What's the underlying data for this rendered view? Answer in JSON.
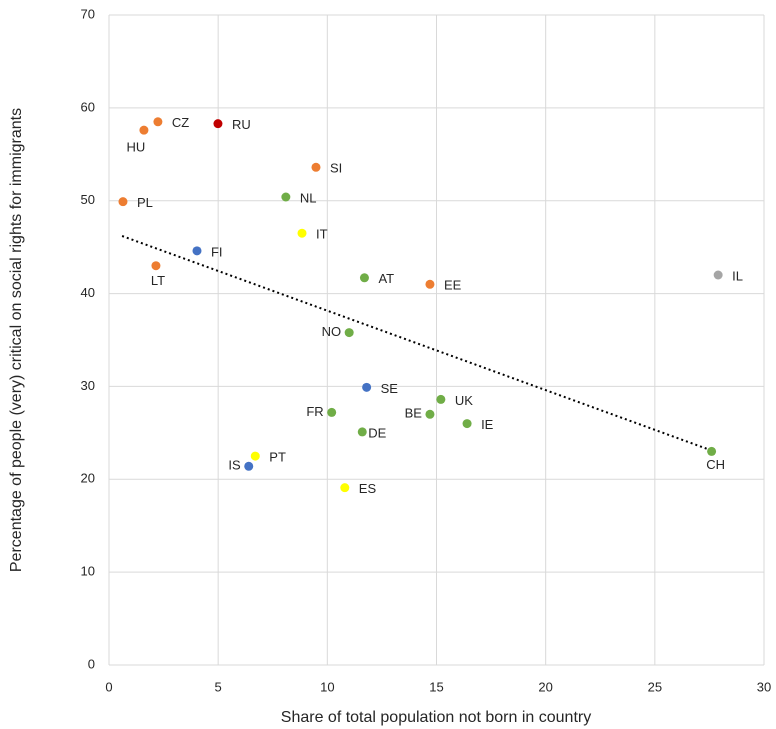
{
  "chart_data": {
    "type": "scatter",
    "xlabel": "Share of total population not born in country",
    "ylabel": "Percentage of people (very) critical on social rights for immigrants",
    "xlim": [
      0,
      30
    ],
    "xticks": [
      0,
      5,
      10,
      15,
      20,
      25,
      30
    ],
    "ylim": [
      0,
      70
    ],
    "yticks": [
      0,
      10,
      20,
      30,
      40,
      50,
      60,
      70
    ],
    "grid": true,
    "points": [
      {
        "label": "PL",
        "x": 0.64,
        "y": 49.9,
        "color": "#ed7d31"
      },
      {
        "label": "HU",
        "x": 1.6,
        "y": 57.6,
        "color": "#ed7d31"
      },
      {
        "label": "CZ",
        "x": 2.24,
        "y": 58.5,
        "color": "#ed7d31"
      },
      {
        "label": "RU",
        "x": 4.99,
        "y": 58.3,
        "color": "#c00000"
      },
      {
        "label": "LT",
        "x": 2.15,
        "y": 43.0,
        "color": "#ed7d31"
      },
      {
        "label": "FI",
        "x": 4.03,
        "y": 44.6,
        "color": "#4472c4"
      },
      {
        "label": "NL",
        "x": 8.1,
        "y": 50.4,
        "color": "#70ad47"
      },
      {
        "label": "SI",
        "x": 9.48,
        "y": 53.6,
        "color": "#ed7d31"
      },
      {
        "label": "IT",
        "x": 8.84,
        "y": 46.5,
        "color": "#ffff00"
      },
      {
        "label": "AT",
        "x": 11.7,
        "y": 41.7,
        "color": "#70ad47"
      },
      {
        "label": "EE",
        "x": 14.7,
        "y": 41.0,
        "color": "#ed7d31"
      },
      {
        "label": "IL",
        "x": 27.9,
        "y": 42.0,
        "color": "#a5a5a5"
      },
      {
        "label": "NO",
        "x": 11.0,
        "y": 35.8,
        "color": "#70ad47"
      },
      {
        "label": "SE",
        "x": 11.8,
        "y": 29.9,
        "color": "#4472c4"
      },
      {
        "label": "FR",
        "x": 10.2,
        "y": 27.2,
        "color": "#70ad47"
      },
      {
        "label": "UK",
        "x": 15.2,
        "y": 28.6,
        "color": "#70ad47"
      },
      {
        "label": "BE",
        "x": 14.7,
        "y": 27.0,
        "color": "#70ad47"
      },
      {
        "label": "IE",
        "x": 16.4,
        "y": 26.0,
        "color": "#70ad47"
      },
      {
        "label": "DE",
        "x": 11.6,
        "y": 25.1,
        "color": "#70ad47"
      },
      {
        "label": "PT",
        "x": 6.7,
        "y": 22.5,
        "color": "#ffff00"
      },
      {
        "label": "IS",
        "x": 6.4,
        "y": 21.4,
        "color": "#4472c4"
      },
      {
        "label": "ES",
        "x": 10.8,
        "y": 19.1,
        "color": "#ffff00"
      },
      {
        "label": "CH",
        "x": 27.6,
        "y": 23.0,
        "color": "#70ad47"
      }
    ],
    "trendline": {
      "x": [
        0.6,
        27.6
      ],
      "y": [
        46.2,
        23.1
      ]
    }
  }
}
